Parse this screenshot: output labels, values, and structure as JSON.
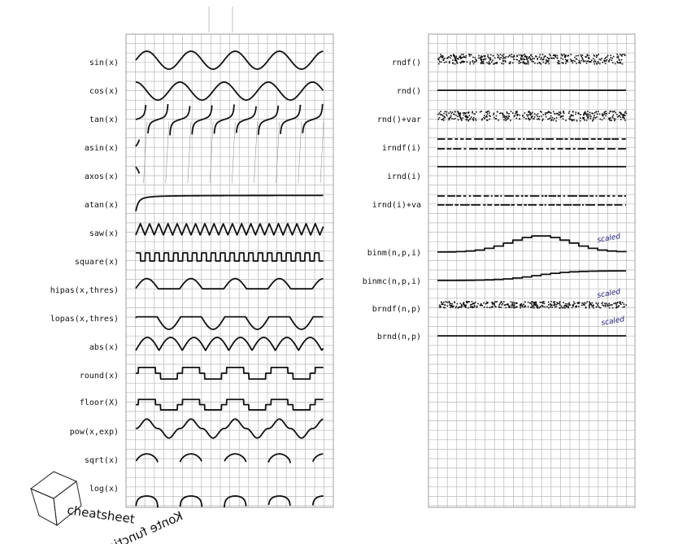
{
  "left_panel": {
    "labels": [
      "sin(x)",
      "cos(x)",
      "tan(x)",
      "asin(x)",
      "axos(x)",
      "atan(x)",
      "saw(x)",
      "square(x)",
      "hipas(x,thres)",
      "lopas(x,thres)",
      "abs(x)",
      "round(x)",
      "floor(X)",
      "pow(x,exp)",
      "sqrt(x)",
      "log(x)"
    ]
  },
  "right_panel": {
    "labels": [
      "rndf()",
      "rnd()",
      "rnd()+var",
      "irndf(i)",
      "irnd(i)",
      "irnd(i)+va",
      "binm(n,p,i)",
      "binmc(n,p,i)",
      "brndf(n,p)",
      "brnd(n,p)"
    ],
    "scaled_note": "scaled"
  },
  "logo": {
    "line1": "Konte functions",
    "line2": "cheatsheet"
  },
  "colors": {
    "grid": "#b8b8b8",
    "curve": "#111111",
    "scaled": "#1a1a7a"
  }
}
